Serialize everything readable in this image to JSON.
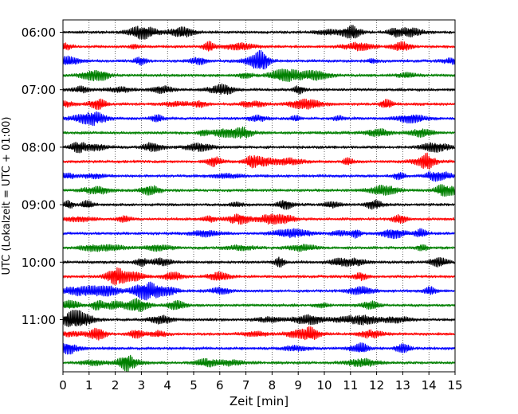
{
  "chart_data": {
    "type": "line",
    "subtype": "helicorder",
    "title": "",
    "xlabel": "Zeit  [min]",
    "ylabel": "UTC (Lokalzeit = UTC + 01:00)",
    "xlim": [
      0,
      15
    ],
    "x_ticks": [
      0,
      1,
      2,
      3,
      4,
      5,
      6,
      7,
      8,
      9,
      10,
      11,
      12,
      13,
      14,
      15
    ],
    "y_tick_labels": [
      "06:00",
      "07:00",
      "08:00",
      "09:00",
      "10:00",
      "11:00"
    ],
    "rows_per_tick": 4,
    "row_count": 24,
    "row_minutes": 15,
    "row_colors": [
      "#000000",
      "#ff0000",
      "#0000ff",
      "#008000"
    ],
    "grid": "vertical dotted at each minute",
    "legend": "none"
  }
}
